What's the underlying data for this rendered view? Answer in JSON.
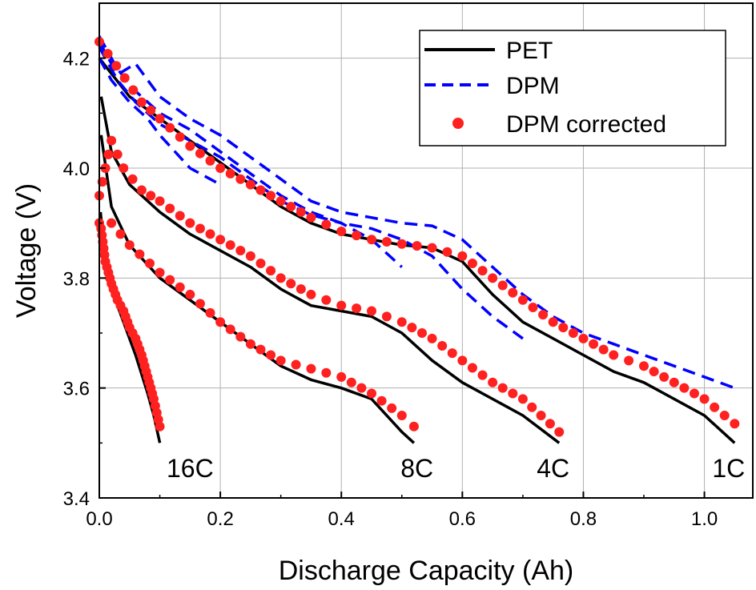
{
  "chart_data": {
    "type": "line",
    "title": "",
    "xlabel": "Discharge Capacity (Ah)",
    "ylabel": "Voltage (V)",
    "xlim": [
      0,
      1.08
    ],
    "ylim": [
      3.4,
      4.3
    ],
    "xticks": [
      "0.0",
      "0.2",
      "0.4",
      "0.6",
      "0.8",
      "1.0"
    ],
    "yticks": [
      "3.4",
      "3.6",
      "3.8",
      "4.0",
      "4.2"
    ],
    "grid": true,
    "legend_position": "top-right",
    "legend": [
      "PET",
      "DPM",
      "DPM corrected"
    ],
    "curve_labels": [
      "16C",
      "8C",
      "4C",
      "1C"
    ],
    "colors": {
      "PET": "#000000",
      "DPM": "#0000ff",
      "DPM corrected": "#ff2020"
    },
    "series": [
      {
        "name": "PET",
        "rate": "1C",
        "style": "solid",
        "points": [
          [
            0.0,
            4.2
          ],
          [
            0.05,
            4.13
          ],
          [
            0.1,
            4.09
          ],
          [
            0.15,
            4.05
          ],
          [
            0.2,
            4.01
          ],
          [
            0.25,
            3.97
          ],
          [
            0.3,
            3.93
          ],
          [
            0.35,
            3.9
          ],
          [
            0.4,
            3.88
          ],
          [
            0.45,
            3.87
          ],
          [
            0.5,
            3.86
          ],
          [
            0.55,
            3.855
          ],
          [
            0.6,
            3.83
          ],
          [
            0.65,
            3.77
          ],
          [
            0.7,
            3.72
          ],
          [
            0.75,
            3.69
          ],
          [
            0.8,
            3.66
          ],
          [
            0.85,
            3.63
          ],
          [
            0.9,
            3.61
          ],
          [
            0.95,
            3.58
          ],
          [
            1.0,
            3.55
          ],
          [
            1.05,
            3.5
          ]
        ]
      },
      {
        "name": "PET",
        "rate": "4C",
        "style": "solid",
        "points": [
          [
            0.003,
            4.13
          ],
          [
            0.02,
            4.03
          ],
          [
            0.05,
            3.97
          ],
          [
            0.1,
            3.92
          ],
          [
            0.15,
            3.88
          ],
          [
            0.2,
            3.85
          ],
          [
            0.25,
            3.82
          ],
          [
            0.3,
            3.78
          ],
          [
            0.35,
            3.75
          ],
          [
            0.4,
            3.74
          ],
          [
            0.45,
            3.73
          ],
          [
            0.5,
            3.7
          ],
          [
            0.55,
            3.65
          ],
          [
            0.6,
            3.61
          ],
          [
            0.65,
            3.58
          ],
          [
            0.7,
            3.55
          ],
          [
            0.76,
            3.5
          ]
        ]
      },
      {
        "name": "PET",
        "rate": "8C",
        "style": "solid",
        "points": [
          [
            0.003,
            4.06
          ],
          [
            0.02,
            3.93
          ],
          [
            0.05,
            3.86
          ],
          [
            0.1,
            3.8
          ],
          [
            0.15,
            3.76
          ],
          [
            0.2,
            3.72
          ],
          [
            0.25,
            3.68
          ],
          [
            0.3,
            3.64
          ],
          [
            0.35,
            3.615
          ],
          [
            0.4,
            3.6
          ],
          [
            0.45,
            3.58
          ],
          [
            0.5,
            3.52
          ],
          [
            0.52,
            3.5
          ]
        ]
      },
      {
        "name": "PET",
        "rate": "16C",
        "style": "solid",
        "points": [
          [
            0.002,
            3.92
          ],
          [
            0.01,
            3.83
          ],
          [
            0.02,
            3.78
          ],
          [
            0.04,
            3.72
          ],
          [
            0.06,
            3.66
          ],
          [
            0.08,
            3.59
          ],
          [
            0.09,
            3.55
          ],
          [
            0.1,
            3.5
          ]
        ]
      },
      {
        "name": "DPM",
        "rate": "1C",
        "style": "dashed",
        "points": [
          [
            0.0,
            4.23
          ],
          [
            0.03,
            4.17
          ],
          [
            0.06,
            4.19
          ],
          [
            0.1,
            4.13
          ],
          [
            0.15,
            4.09
          ],
          [
            0.2,
            4.06
          ],
          [
            0.25,
            4.02
          ],
          [
            0.3,
            3.98
          ],
          [
            0.35,
            3.94
          ],
          [
            0.4,
            3.92
          ],
          [
            0.45,
            3.91
          ],
          [
            0.5,
            3.9
          ],
          [
            0.55,
            3.895
          ],
          [
            0.6,
            3.87
          ],
          [
            0.65,
            3.82
          ],
          [
            0.7,
            3.77
          ],
          [
            0.75,
            3.73
          ],
          [
            0.8,
            3.7
          ],
          [
            0.85,
            3.68
          ],
          [
            0.9,
            3.66
          ],
          [
            0.95,
            3.64
          ],
          [
            1.0,
            3.62
          ],
          [
            1.05,
            3.6
          ]
        ]
      },
      {
        "name": "DPM",
        "rate": "4C",
        "style": "dashed",
        "points": [
          [
            0.0,
            4.24
          ],
          [
            0.03,
            4.18
          ],
          [
            0.06,
            4.14
          ],
          [
            0.1,
            4.1
          ],
          [
            0.15,
            4.07
          ],
          [
            0.2,
            4.03
          ],
          [
            0.25,
            3.99
          ],
          [
            0.3,
            3.95
          ],
          [
            0.35,
            3.92
          ],
          [
            0.4,
            3.9
          ],
          [
            0.45,
            3.89
          ],
          [
            0.5,
            3.87
          ],
          [
            0.55,
            3.84
          ],
          [
            0.6,
            3.78
          ],
          [
            0.65,
            3.73
          ],
          [
            0.7,
            3.69
          ]
        ]
      },
      {
        "name": "DPM",
        "rate": "8C",
        "style": "dashed",
        "points": [
          [
            0.0,
            4.22
          ],
          [
            0.03,
            4.16
          ],
          [
            0.06,
            4.12
          ],
          [
            0.1,
            4.08
          ],
          [
            0.15,
            4.05
          ],
          [
            0.2,
            4.02
          ],
          [
            0.25,
            3.98
          ],
          [
            0.3,
            3.94
          ],
          [
            0.35,
            3.915
          ],
          [
            0.4,
            3.9
          ],
          [
            0.45,
            3.87
          ],
          [
            0.5,
            3.82
          ]
        ]
      },
      {
        "name": "DPM",
        "rate": "16C",
        "style": "dashed",
        "points": [
          [
            0.0,
            4.2
          ],
          [
            0.02,
            4.16
          ],
          [
            0.05,
            4.12
          ],
          [
            0.08,
            4.09
          ],
          [
            0.1,
            4.06
          ],
          [
            0.15,
            4.0
          ],
          [
            0.2,
            3.97
          ]
        ]
      },
      {
        "name": "DPM corrected",
        "rate": "1C",
        "style": "dots",
        "points": [
          [
            0.0,
            4.23
          ],
          [
            0.07,
            4.12
          ],
          [
            0.1,
            4.09
          ],
          [
            0.15,
            4.04
          ],
          [
            0.2,
            4.0
          ],
          [
            0.25,
            3.97
          ],
          [
            0.3,
            3.94
          ],
          [
            0.35,
            3.91
          ],
          [
            0.4,
            3.885
          ],
          [
            0.45,
            3.87
          ],
          [
            0.5,
            3.862
          ],
          [
            0.55,
            3.855
          ],
          [
            0.6,
            3.84
          ],
          [
            0.65,
            3.8
          ],
          [
            0.7,
            3.76
          ],
          [
            0.75,
            3.72
          ],
          [
            0.8,
            3.69
          ],
          [
            0.85,
            3.66
          ],
          [
            0.9,
            3.64
          ],
          [
            0.95,
            3.61
          ],
          [
            1.0,
            3.58
          ],
          [
            1.05,
            3.535
          ]
        ]
      },
      {
        "name": "DPM corrected",
        "rate": "4C",
        "style": "dots",
        "points": [
          [
            0.0,
            3.95
          ],
          [
            0.02,
            4.05
          ],
          [
            0.04,
            4.0
          ],
          [
            0.07,
            3.96
          ],
          [
            0.1,
            3.94
          ],
          [
            0.15,
            3.9
          ],
          [
            0.2,
            3.87
          ],
          [
            0.25,
            3.84
          ],
          [
            0.3,
            3.8
          ],
          [
            0.35,
            3.77
          ],
          [
            0.4,
            3.75
          ],
          [
            0.45,
            3.74
          ],
          [
            0.5,
            3.72
          ],
          [
            0.55,
            3.69
          ],
          [
            0.6,
            3.65
          ],
          [
            0.65,
            3.61
          ],
          [
            0.7,
            3.58
          ],
          [
            0.76,
            3.52
          ]
        ]
      },
      {
        "name": "DPM corrected",
        "rate": "8C",
        "style": "dots",
        "points": [
          [
            0.0,
            3.9
          ],
          [
            0.02,
            3.9
          ],
          [
            0.05,
            3.86
          ],
          [
            0.1,
            3.81
          ],
          [
            0.15,
            3.77
          ],
          [
            0.2,
            3.72
          ],
          [
            0.25,
            3.68
          ],
          [
            0.3,
            3.65
          ],
          [
            0.35,
            3.635
          ],
          [
            0.4,
            3.62
          ],
          [
            0.45,
            3.59
          ],
          [
            0.5,
            3.55
          ],
          [
            0.52,
            3.53
          ]
        ]
      },
      {
        "name": "DPM corrected",
        "rate": "16C",
        "style": "dots",
        "points": [
          [
            0.003,
            3.89
          ],
          [
            0.01,
            3.83
          ],
          [
            0.02,
            3.79
          ],
          [
            0.03,
            3.76
          ],
          [
            0.04,
            3.74
          ],
          [
            0.05,
            3.71
          ],
          [
            0.06,
            3.69
          ],
          [
            0.07,
            3.66
          ],
          [
            0.08,
            3.62
          ],
          [
            0.09,
            3.58
          ],
          [
            0.1,
            3.53
          ]
        ]
      }
    ]
  }
}
